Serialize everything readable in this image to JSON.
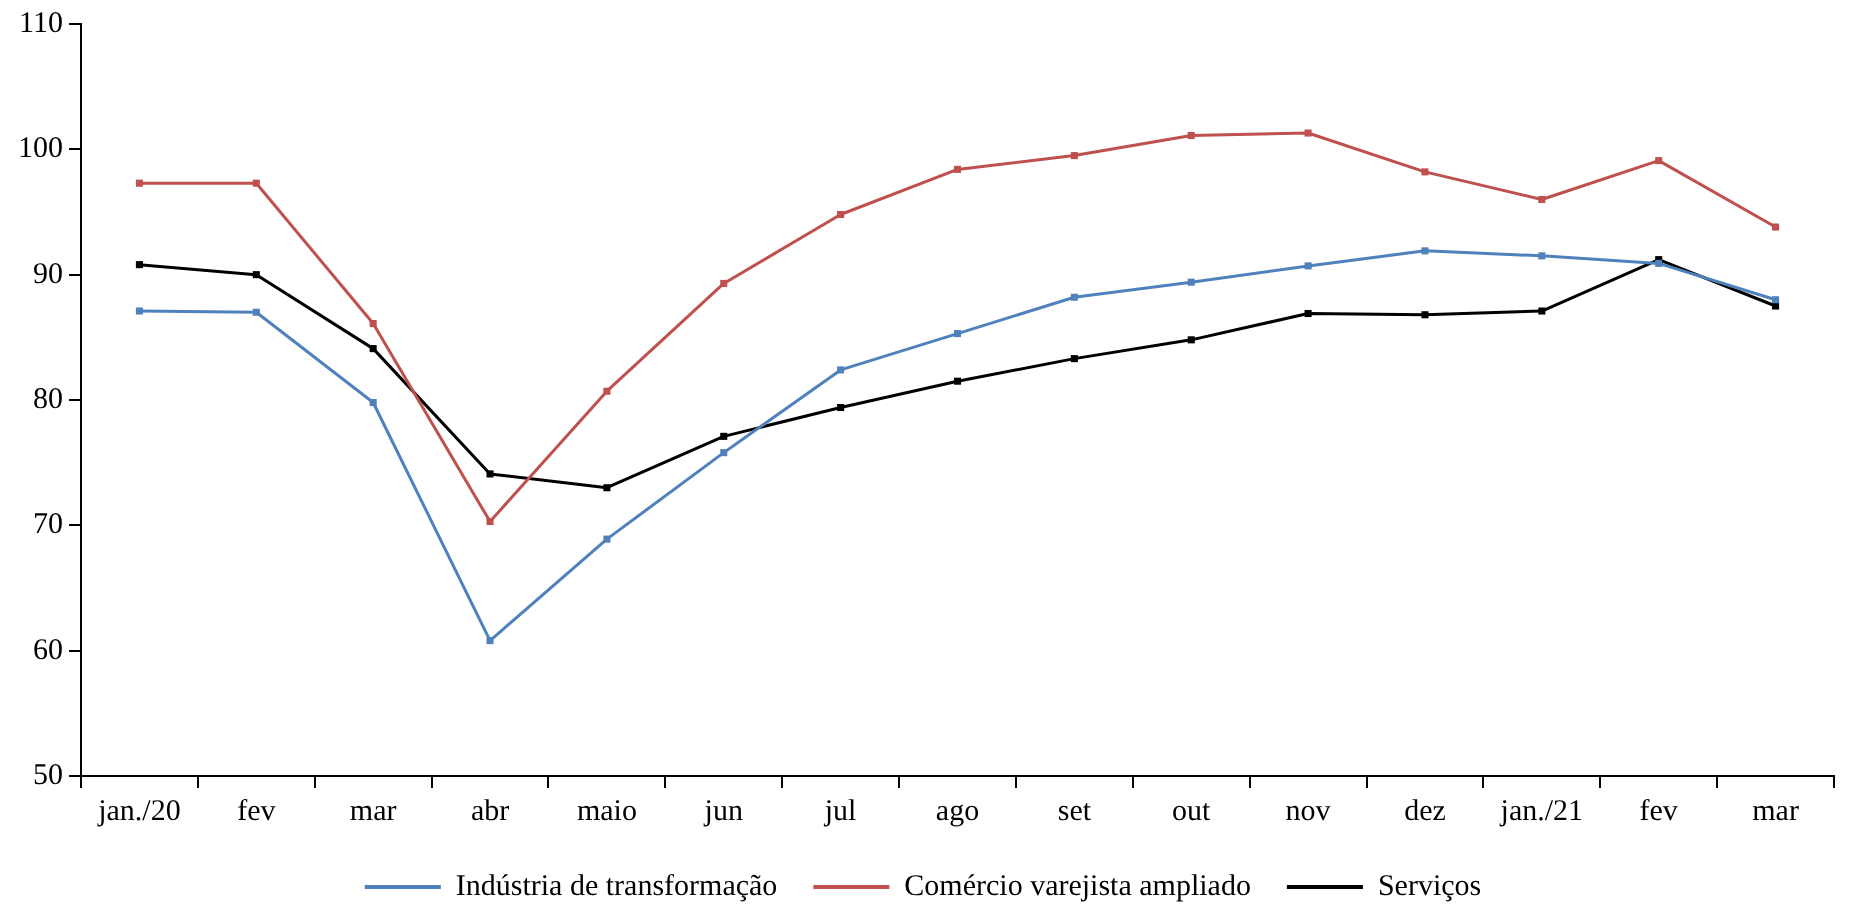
{
  "chart_data": {
    "type": "line",
    "categories": [
      "jan./20",
      "fev",
      "mar",
      "abr",
      "maio",
      "jun",
      "jul",
      "ago",
      "set",
      "out",
      "nov",
      "dez",
      "jan./21",
      "fev",
      "mar"
    ],
    "series": [
      {
        "name": "Indústria de transformação",
        "color": "#4f81bd",
        "values": [
          87.1,
          87.0,
          79.8,
          60.8,
          68.9,
          75.8,
          82.4,
          85.3,
          88.2,
          89.4,
          90.7,
          91.9,
          91.5,
          90.9,
          88.0
        ]
      },
      {
        "name": "Comércio varejista ampliado",
        "color": "#c0504d",
        "values": [
          97.3,
          97.3,
          86.1,
          70.3,
          80.7,
          89.3,
          94.8,
          98.4,
          99.5,
          101.1,
          101.3,
          98.2,
          96.0,
          99.1,
          93.8
        ]
      },
      {
        "name": "Serviços",
        "color": "#000000",
        "values": [
          90.8,
          90.0,
          84.1,
          74.1,
          73.0,
          77.1,
          79.4,
          81.5,
          83.3,
          84.8,
          86.9,
          86.8,
          87.1,
          91.2,
          87.5
        ]
      }
    ],
    "ylim": [
      50,
      110
    ],
    "yticks": [
      50,
      60,
      70,
      80,
      90,
      100,
      110
    ],
    "grid": false,
    "legend": "bottom",
    "marker": "square",
    "line_style": "solid"
  }
}
